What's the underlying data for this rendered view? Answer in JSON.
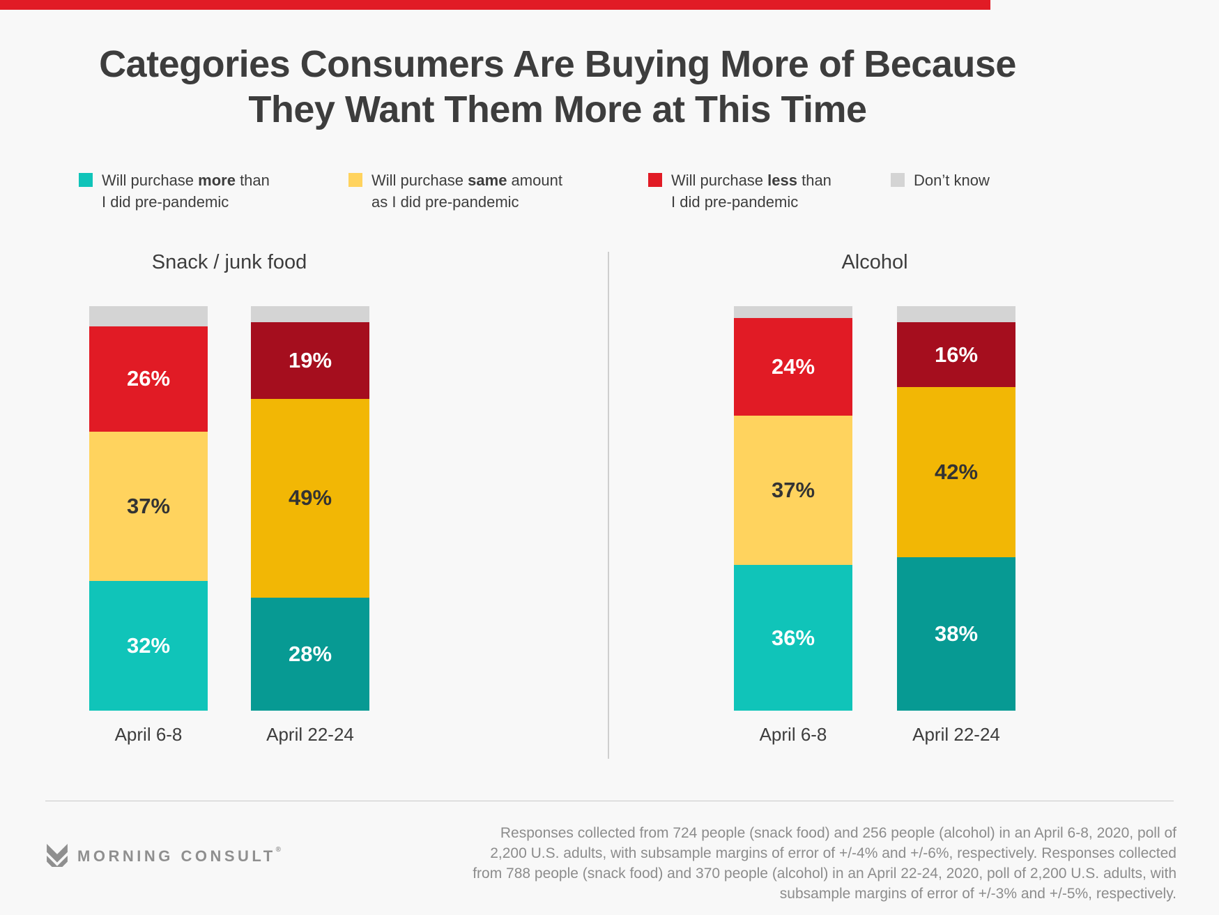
{
  "page": {
    "background": "#F8F8F8",
    "top_bar_color": "#E11B25"
  },
  "title": {
    "line1": "Categories Consumers Are Buying More of Because",
    "line2": "They Want Them More at This Time"
  },
  "legend": {
    "items": [
      {
        "swatch_color": "#10C4B9",
        "pre": "Will purchase ",
        "bold": "more",
        "post": " than",
        "line2": "I did pre-pandemic"
      },
      {
        "swatch_color": "#FFD35E",
        "pre": "Will purchase ",
        "bold": "same",
        "post": " amount",
        "line2": "as I did pre-pandemic"
      },
      {
        "swatch_color": "#E11B25",
        "pre": "Will purchase ",
        "bold": "less",
        "post": " than",
        "line2": "I did pre-pandemic"
      },
      {
        "swatch_color": "#D4D4D4",
        "pre": "Don’t know",
        "bold": "",
        "post": "",
        "line2": ""
      }
    ]
  },
  "chart_data": {
    "type": "bar",
    "stacking": "percent",
    "unit": "%",
    "ylim": [
      0,
      100
    ],
    "grid": false,
    "legend_position": "top",
    "categories": [
      "April 6-8",
      "April 22-24"
    ],
    "series_bottom_to_top": [
      {
        "key": "more",
        "name": "Will purchase more than I did pre-pandemic"
      },
      {
        "key": "same",
        "name": "Will purchase same amount as I did pre-pandemic"
      },
      {
        "key": "less",
        "name": "Will purchase less than I did pre-pandemic"
      },
      {
        "key": "dont_know",
        "name": "Don’t know"
      }
    ],
    "groups": [
      {
        "title": "Snack / junk food",
        "bars": [
          {
            "category": "April 6-8",
            "values": {
              "more": 32,
              "same": 37,
              "less": 26,
              "dont_know": 5
            },
            "labels": {
              "more": "32%",
              "same": "37%",
              "less": "26%"
            },
            "colors": {
              "more": "#10C4B9",
              "same": "#FFD35E",
              "less": "#E11B25",
              "dont_know": "#D4D4D4"
            }
          },
          {
            "category": "April 22-24",
            "values": {
              "more": 28,
              "same": 49,
              "less": 19,
              "dont_know": 4
            },
            "labels": {
              "more": "28%",
              "same": "49%",
              "less": "19%"
            },
            "colors": {
              "more": "#079A93",
              "same": "#F2B705",
              "less": "#A50E1E",
              "dont_know": "#D4D4D4"
            }
          }
        ]
      },
      {
        "title": "Alcohol",
        "bars": [
          {
            "category": "April 6-8",
            "values": {
              "more": 36,
              "same": 37,
              "less": 24,
              "dont_know": 3
            },
            "labels": {
              "more": "36%",
              "same": "37%",
              "less": "24%"
            },
            "colors": {
              "more": "#10C4B9",
              "same": "#FFD35E",
              "less": "#E11B25",
              "dont_know": "#D4D4D4"
            }
          },
          {
            "category": "April 22-24",
            "values": {
              "more": 38,
              "same": 42,
              "less": 16,
              "dont_know": 4
            },
            "labels": {
              "more": "38%",
              "same": "42%",
              "less": "16%"
            },
            "colors": {
              "more": "#079A93",
              "same": "#F2B705",
              "less": "#A50E1E",
              "dont_know": "#D4D4D4"
            }
          }
        ]
      }
    ]
  },
  "footer": {
    "logo_text": "MORNING CONSULT",
    "logo_reg_mark": "®",
    "note_lines": [
      "Responses collected from 724 people (snack food) and 256 people (alcohol) in an April 6-8, 2020, poll of",
      "2,200 U.S. adults, with subsample margins of error of +/-4% and +/-6%, respectively. Responses collected",
      "from 788 people (snack food) and 370 people (alcohol) in an April 22-24, 2020, poll of 2,200 U.S. adults, with",
      "subsample margins of error of +/-3% and +/-5%, respectively."
    ]
  }
}
